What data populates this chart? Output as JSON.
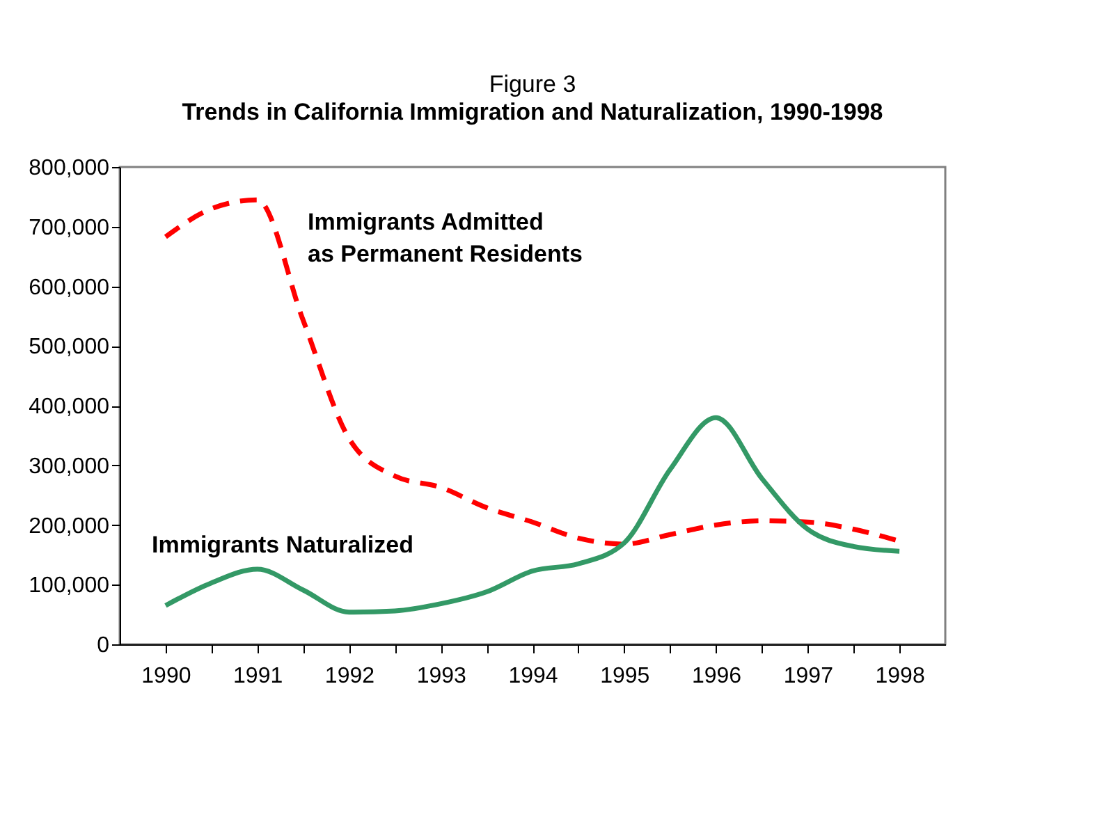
{
  "chart_data": {
    "type": "line",
    "title": "Figure 3",
    "subtitle": "Trends in California Immigration and Naturalization, 1990-1998",
    "x": [
      1990,
      1990.5,
      1991,
      1991.5,
      1992,
      1992.5,
      1993,
      1993.5,
      1994,
      1994.5,
      1995,
      1995.5,
      1996,
      1996.5,
      1997,
      1997.5,
      1998
    ],
    "series": [
      {
        "name": "Immigrants Admitted as Permanent Residents",
        "color": "#ff0000",
        "line_style": "dashed",
        "values": [
          683000,
          730000,
          745000,
          543000,
          345000,
          282000,
          263000,
          229000,
          205000,
          178000,
          168000,
          184000,
          200000,
          207000,
          205000,
          193000,
          173000
        ]
      },
      {
        "name": "Immigrants Naturalized",
        "color": "#339966",
        "line_style": "solid",
        "values": [
          65000,
          103000,
          126000,
          91000,
          54000,
          56000,
          68000,
          88000,
          123000,
          135000,
          170000,
          293000,
          380000,
          278000,
          193000,
          164000,
          156000
        ]
      }
    ],
    "xlim": [
      1989.5,
      1998.5
    ],
    "xticks": [
      {
        "value": 1990,
        "label": "1990"
      },
      {
        "value": 1990.5,
        "label": null
      },
      {
        "value": 1991,
        "label": "1991"
      },
      {
        "value": 1991.5,
        "label": null
      },
      {
        "value": 1992,
        "label": "1992"
      },
      {
        "value": 1992.5,
        "label": null
      },
      {
        "value": 1993,
        "label": "1993"
      },
      {
        "value": 1993.5,
        "label": null
      },
      {
        "value": 1994,
        "label": "1994"
      },
      {
        "value": 1994.5,
        "label": null
      },
      {
        "value": 1995,
        "label": "1995"
      },
      {
        "value": 1995.5,
        "label": null
      },
      {
        "value": 1996,
        "label": "1996"
      },
      {
        "value": 1996.5,
        "label": null
      },
      {
        "value": 1997,
        "label": "1997"
      },
      {
        "value": 1997.5,
        "label": null
      },
      {
        "value": 1998,
        "label": "1998"
      }
    ],
    "ylim": [
      0,
      800000
    ],
    "yticks": [
      {
        "value": 0,
        "label": "0"
      },
      {
        "value": 100000,
        "label": "100,000"
      },
      {
        "value": 200000,
        "label": "200,000"
      },
      {
        "value": 300000,
        "label": "300,000"
      },
      {
        "value": 400000,
        "label": "400,000"
      },
      {
        "value": 500000,
        "label": "500,000"
      },
      {
        "value": 600000,
        "label": "600,000"
      },
      {
        "value": 700000,
        "label": "700,000"
      },
      {
        "value": 800000,
        "label": "800,000"
      }
    ],
    "grid": false,
    "marker": "none"
  }
}
